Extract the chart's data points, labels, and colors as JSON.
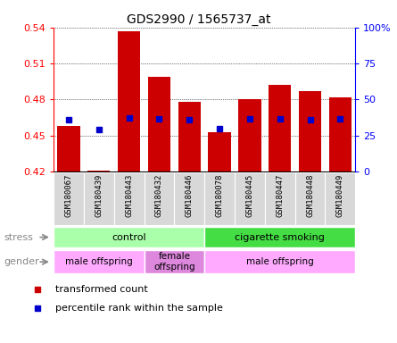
{
  "title": "GDS2990 / 1565737_at",
  "samples": [
    "GSM180067",
    "GSM180439",
    "GSM180443",
    "GSM180432",
    "GSM180446",
    "GSM180078",
    "GSM180445",
    "GSM180447",
    "GSM180448",
    "GSM180449"
  ],
  "red_values": [
    0.458,
    0.421,
    0.537,
    0.499,
    0.478,
    0.453,
    0.48,
    0.492,
    0.487,
    0.482
  ],
  "blue_values": [
    0.463,
    0.455,
    0.465,
    0.464,
    0.463,
    0.456,
    0.464,
    0.464,
    0.463,
    0.464
  ],
  "ylim_left": [
    0.42,
    0.54
  ],
  "ylim_right": [
    0,
    100
  ],
  "yticks_left": [
    0.42,
    0.45,
    0.48,
    0.51,
    0.54
  ],
  "yticks_right": [
    0,
    25,
    50,
    75,
    100
  ],
  "ytick_labels_right": [
    "0",
    "25",
    "50",
    "75",
    "100%"
  ],
  "bar_color": "#cc0000",
  "dot_color": "#0000cc",
  "stress_groups": [
    {
      "label": "control",
      "start": 0,
      "end": 5,
      "color": "#aaffaa"
    },
    {
      "label": "cigarette smoking",
      "start": 5,
      "end": 10,
      "color": "#44dd44"
    }
  ],
  "gender_groups": [
    {
      "label": "male offspring",
      "start": 0,
      "end": 3,
      "color": "#ffaaff"
    },
    {
      "label": "female\noffspring",
      "start": 3,
      "end": 5,
      "color": "#dd88dd"
    },
    {
      "label": "male offspring",
      "start": 5,
      "end": 10,
      "color": "#ffaaff"
    }
  ],
  "legend_red": "transformed count",
  "legend_blue": "percentile rank within the sample",
  "bar_bottom": 0.42,
  "bar_width": 0.75,
  "xtick_bg_color": "#d8d8d8",
  "stress_label_color": "#888888",
  "gender_label_color": "#888888"
}
